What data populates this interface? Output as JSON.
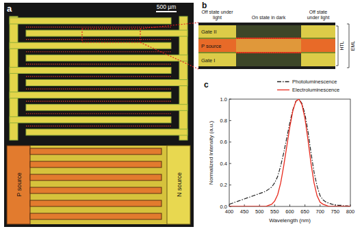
{
  "panel_a": {
    "label": "a",
    "scale_bar": "500 µm",
    "p_label": "P source",
    "n_label": "N source"
  },
  "panel_b": {
    "label": "b",
    "columns": [
      "Off state under light",
      "On state in dark",
      "Off state under light"
    ],
    "rows": [
      "Gate II",
      "P source",
      "Gate I"
    ],
    "brackets": [
      "HTL",
      "EML"
    ]
  },
  "chart_data": {
    "panel_label": "c",
    "type": "line",
    "x_label": "Wavelength (nm)",
    "y_label": "Normalized Intensity (a.u.)",
    "x": [
      400,
      410,
      420,
      430,
      440,
      450,
      460,
      470,
      480,
      490,
      500,
      510,
      520,
      530,
      540,
      550,
      560,
      570,
      580,
      590,
      600,
      610,
      620,
      630,
      640,
      650,
      660,
      670,
      680,
      690,
      700,
      710,
      720,
      730,
      740,
      750,
      760,
      770,
      780,
      790,
      800
    ],
    "series": [
      {
        "name": "Photoluminescence",
        "color": "#222222",
        "line_style": "dashdot",
        "values": [
          0.02,
          0.03,
          0.04,
          0.05,
          0.06,
          0.07,
          0.08,
          0.09,
          0.1,
          0.11,
          0.12,
          0.13,
          0.14,
          0.16,
          0.18,
          0.22,
          0.28,
          0.38,
          0.5,
          0.64,
          0.78,
          0.9,
          0.98,
          1.0,
          0.96,
          0.86,
          0.7,
          0.5,
          0.32,
          0.19,
          0.1,
          0.06,
          0.04,
          0.03,
          0.02,
          0.015,
          0.01,
          0.01,
          0.005,
          0.005,
          0.0
        ]
      },
      {
        "name": "Electroluminescence",
        "color": "#e8291c",
        "line_style": "solid",
        "values": [
          0,
          0,
          0,
          0,
          0,
          0,
          0,
          0,
          0,
          0,
          0,
          0,
          0,
          0.01,
          0.02,
          0.05,
          0.11,
          0.22,
          0.38,
          0.56,
          0.74,
          0.89,
          0.98,
          1.0,
          0.95,
          0.82,
          0.62,
          0.4,
          0.22,
          0.1,
          0.04,
          0.02,
          0.01,
          0,
          0,
          0,
          0,
          0,
          0,
          0,
          0
        ]
      }
    ],
    "xlim": [
      400,
      800
    ],
    "xticks": [
      400,
      450,
      500,
      550,
      600,
      650,
      700,
      750,
      800
    ],
    "ylim": [
      0,
      1
    ],
    "yticks": [
      {
        "value": 0,
        "label": "0.0"
      },
      {
        "value": 0.2,
        "label": "0.2"
      },
      {
        "value": 0.4,
        "label": "0.4"
      },
      {
        "value": 0.6,
        "label": "0.6"
      },
      {
        "value": 0.8,
        "label": "0.8"
      },
      {
        "value": 1,
        "label": "1.0"
      }
    ],
    "legend": "top-right"
  }
}
